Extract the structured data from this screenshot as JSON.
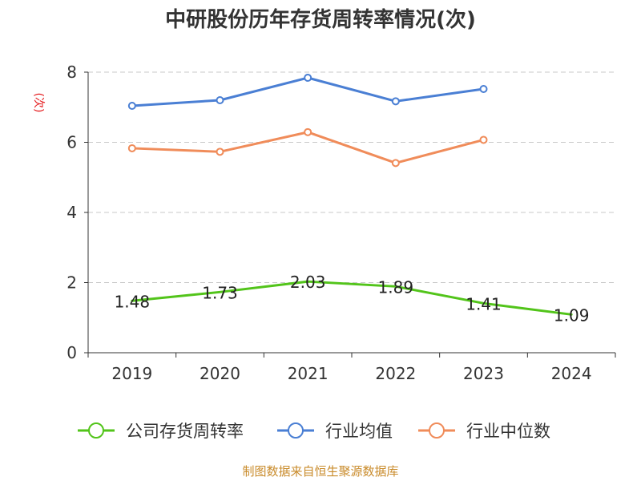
{
  "chart_data": {
    "type": "line",
    "title": "中研股份历年存货周转率情况(次)",
    "ylabel": "(次)",
    "xlabel": "",
    "categories": [
      "2019",
      "2020",
      "2021",
      "2022",
      "2023",
      "2024"
    ],
    "ylim": [
      0,
      8
    ],
    "yticks": [
      0,
      2,
      4,
      6,
      8
    ],
    "grid": true,
    "legend_position": "bottom",
    "series": [
      {
        "name": "公司存货周转率",
        "color": "#52c41a",
        "values": [
          1.48,
          1.73,
          2.03,
          1.89,
          1.41,
          1.09
        ],
        "labels": [
          "1.48",
          "1.73",
          "2.03",
          "1.89",
          "1.41",
          "1.09"
        ],
        "show_markers": false
      },
      {
        "name": "行业均值",
        "color": "#4a7fd4",
        "values": [
          7.04,
          7.2,
          7.84,
          7.17,
          7.52,
          null
        ],
        "show_markers": true
      },
      {
        "name": "行业中位数",
        "color": "#f08c5a",
        "values": [
          5.83,
          5.73,
          6.29,
          5.41,
          6.07,
          null
        ],
        "show_markers": true
      }
    ],
    "source": "制图数据来自恒生聚源数据库"
  }
}
